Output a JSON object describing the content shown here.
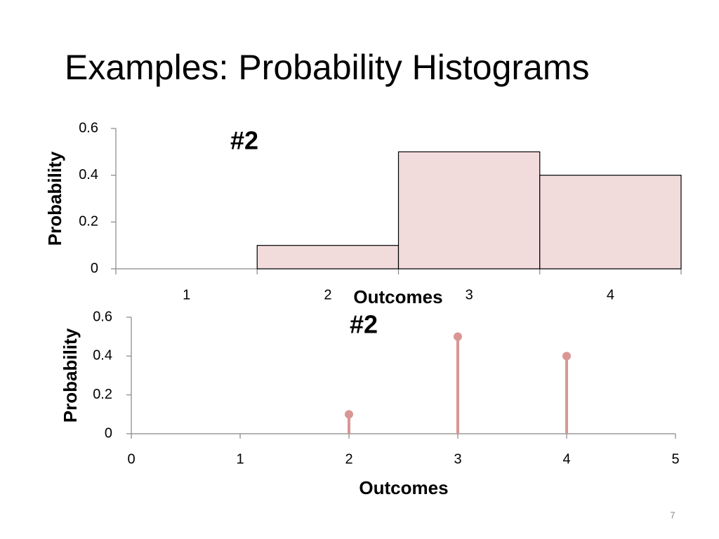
{
  "title": "Examples: Probability Histograms",
  "page_number": "7",
  "chart_data": [
    {
      "type": "bar",
      "annotation": "#2",
      "x_label": "Outcomes",
      "y_label": "Probability",
      "categories": [
        "1",
        "2",
        "3",
        "4"
      ],
      "values": [
        0,
        0.1,
        0.5,
        0.4
      ],
      "color": "#f2dcdb",
      "edge_color": "#000000",
      "ylim": [
        0,
        0.6
      ],
      "yticks": [
        0,
        0.2,
        0.4,
        0.6
      ],
      "grid": false
    },
    {
      "type": "stem",
      "annotation": "#2",
      "x_label": "Outcomes",
      "y_label": "Probability",
      "x": [
        2,
        3,
        4
      ],
      "values": [
        0.1,
        0.5,
        0.4
      ],
      "color": "#d99694",
      "xlim": [
        0,
        5
      ],
      "xticks": [
        0,
        1,
        2,
        3,
        4,
        5
      ],
      "ylim": [
        0,
        0.6
      ],
      "yticks": [
        0,
        0.2,
        0.4,
        0.6
      ],
      "grid": false
    }
  ]
}
